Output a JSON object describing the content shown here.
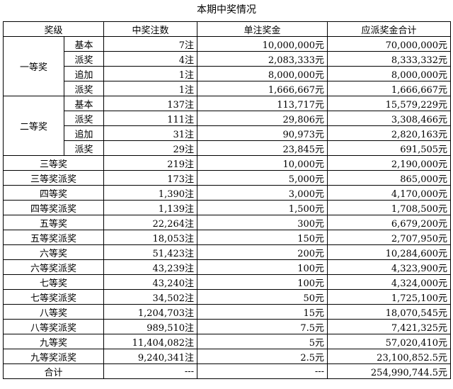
{
  "title": "本期中奖情况",
  "headers": [
    "奖级",
    "中奖注数",
    "单注奖金",
    "应派奖金合计"
  ],
  "groups": [
    {
      "name": "一等奖",
      "rows": [
        {
          "sub": "基本",
          "count": "7注",
          "unit": "10,000,000元",
          "total": "70,000,000元"
        },
        {
          "sub": "派奖",
          "count": "4注",
          "unit": "2,083,333元",
          "total": "8,333,332元"
        },
        {
          "sub": "追加",
          "count": "1注",
          "unit": "8,000,000元",
          "total": "8,000,000元"
        },
        {
          "sub": "派奖",
          "count": "1注",
          "unit": "1,666,667元",
          "total": "1,666,667元"
        }
      ]
    },
    {
      "name": "二等奖",
      "rows": [
        {
          "sub": "基本",
          "count": "137注",
          "unit": "113,717元",
          "total": "15,579,229元"
        },
        {
          "sub": "派奖",
          "count": "111注",
          "unit": "29,806元",
          "total": "3,308,466元"
        },
        {
          "sub": "追加",
          "count": "31注",
          "unit": "90,973元",
          "total": "2,820,163元"
        },
        {
          "sub": "派奖",
          "count": "29注",
          "unit": "23,845元",
          "total": "691,505元"
        }
      ]
    }
  ],
  "rows": [
    {
      "level": "三等奖",
      "count": "219注",
      "unit": "10,000元",
      "total": "2,190,000元"
    },
    {
      "level": "三等奖派奖",
      "count": "173注",
      "unit": "5,000元",
      "total": "865,000元"
    },
    {
      "level": "四等奖",
      "count": "1,390注",
      "unit": "3,000元",
      "total": "4,170,000元"
    },
    {
      "level": "四等奖派奖",
      "count": "1,139注",
      "unit": "1,500元",
      "total": "1,708,500元"
    },
    {
      "level": "五等奖",
      "count": "22,264注",
      "unit": "300元",
      "total": "6,679,200元"
    },
    {
      "level": "五等奖派奖",
      "count": "18,053注",
      "unit": "150元",
      "total": "2,707,950元"
    },
    {
      "level": "六等奖",
      "count": "51,423注",
      "unit": "200元",
      "total": "10,284,600元"
    },
    {
      "level": "六等奖派奖",
      "count": "43,239注",
      "unit": "100元",
      "total": "4,323,900元"
    },
    {
      "level": "七等奖",
      "count": "43,240注",
      "unit": "100元",
      "total": "4,324,000元"
    },
    {
      "level": "七等奖派奖",
      "count": "34,502注",
      "unit": "50元",
      "total": "1,725,100元"
    },
    {
      "level": "八等奖",
      "count": "1,204,703注",
      "unit": "15元",
      "total": "18,070,545元"
    },
    {
      "level": "八等奖派奖",
      "count": "989,510注",
      "unit": "7.5元",
      "total": "7,421,325元"
    },
    {
      "level": "九等奖",
      "count": "11,404,082注",
      "unit": "5元",
      "total": "57,020,410元"
    },
    {
      "level": "九等奖派奖",
      "count": "9,240,341注",
      "unit": "2.5元",
      "total": "23,100,852.5元"
    }
  ],
  "summary": {
    "level": "合计",
    "count": "---",
    "unit": "---",
    "total": "254,990,744.5元"
  }
}
